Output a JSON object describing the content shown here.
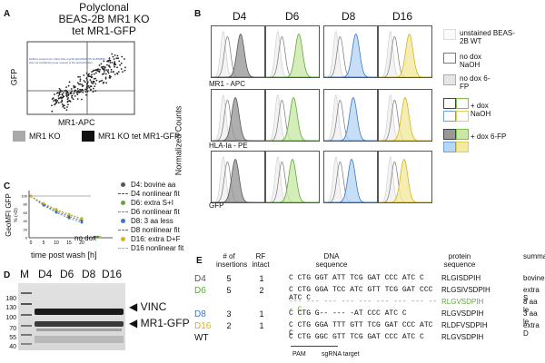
{
  "panelA": {
    "letter": "A",
    "title_lines": [
      "Polyclonal",
      "BEAS-2B MR1 KO",
      "tet MR1-GFP"
    ],
    "ylabel": "GFP",
    "xlabel": "MR1-APC",
    "legend": [
      {
        "label": "MR1 KO",
        "color": "#a9a9a9"
      },
      {
        "label": "MR1 KO tet MR1-GFP",
        "color": "#111111"
      }
    ]
  },
  "panelB": {
    "letter": "B",
    "columns": [
      "D4",
      "D6",
      "D8",
      "D16"
    ],
    "rows": [
      {
        "label": "MR1 - APC"
      },
      {
        "label": "HLA-Ia - PE"
      },
      {
        "label": "GFP"
      }
    ],
    "yaxis": "Normalized Counts",
    "legend": [
      {
        "text": "unstained BEAS-2B WT"
      },
      {
        "text": "no dox NaOH"
      },
      {
        "text": "no dox 6-FP"
      },
      {
        "text": "+ dox NaOH"
      },
      {
        "text": "+ dox 6-FP"
      }
    ],
    "axis_ticks": [
      "0",
      "10",
      "10",
      "10"
    ]
  },
  "panelC": {
    "letter": "C",
    "ylabel_lines": [
      "GeoMFI GFP",
      "% (+D)"
    ],
    "xlabel": "time post wash [h]",
    "xticks": [
      "0",
      "5",
      "10",
      "15",
      "20"
    ],
    "no_dox": "no dox",
    "yticks": [
      "100",
      "80",
      "60",
      "40",
      "20",
      "0"
    ],
    "legend": [
      {
        "label": "D4: bovine aa",
        "color": "#555555"
      },
      {
        "label": "D4 nonlinear fit",
        "color": "#555555"
      },
      {
        "label": "D6: extra S+I",
        "color": "#5ea83a"
      },
      {
        "label": "D6 nonlinear fit",
        "color": "#5ea83a"
      },
      {
        "label": "D8: 3 aa less",
        "color": "#3a78c0"
      },
      {
        "label": "D8 nonlinear fit",
        "color": "#3a78c0"
      },
      {
        "label": "D16: extra D+F",
        "color": "#d9b21a"
      },
      {
        "label": "D16 nonlinear fit",
        "color": "#d9b21a"
      }
    ]
  },
  "panelD": {
    "letter": "D",
    "lanes": [
      "M",
      "D4",
      "D6",
      "D8",
      "D16"
    ],
    "markers": [
      "180",
      "130",
      "100",
      "70",
      "55",
      "40"
    ],
    "bands": [
      {
        "label": "VINC"
      },
      {
        "label": "MR1-GFP"
      }
    ]
  },
  "panelE": {
    "letter": "E",
    "headers": {
      "insertions": "# of insertions",
      "rf": "RF intact",
      "dna": "DNA sequence",
      "protein": "protein sequence",
      "summary": "summa"
    },
    "rows": [
      {
        "name": "D4",
        "color": "#555555",
        "ins": "5",
        "rf": "1",
        "dna": "C CTG GGT ATT TCG GAT CCC ATC C",
        "protein": "RLGISDPIH",
        "summary": "bovine"
      },
      {
        "name": "D6",
        "color": "#5ea83a",
        "ins": "5",
        "rf": "2",
        "dna": "C CTG GGA TCC ATC GTT TCG GAT CCC ATC C",
        "protein": "RLGSIVSDPIH",
        "summary": "extra S"
      },
      {
        "name": "",
        "color": "#5ea83a",
        "ins": "",
        "rf": "",
        "dna": "--- --- --- --- --- --- --- --- --- C",
        "protein": "RLGVSDPIH",
        "summary": "8 aa le"
      },
      {
        "name": "D8",
        "color": "#3a78c0",
        "ins": "3",
        "rf": "1",
        "dna": "C CTG G-- --- -AT CCC ATC C",
        "protein": "RLGVSDPIH",
        "summary": "3 aa le"
      },
      {
        "name": "D16",
        "color": "#d9b21a",
        "ins": "2",
        "rf": "1",
        "dna": "C CTG GGA TTT GTT TCG GAT CCC ATC C",
        "protein": "RLDFVSDPIH",
        "summary": "extra D"
      },
      {
        "name": "WT",
        "color": "#111111",
        "ins": "",
        "rf": "",
        "dna": "C CTG GGC GTT TCG GAT CCC ATC C",
        "protein": "RLGVSDPIH",
        "summary": ""
      }
    ],
    "pam": "PAM",
    "sgrna": "sgRNA target"
  }
}
